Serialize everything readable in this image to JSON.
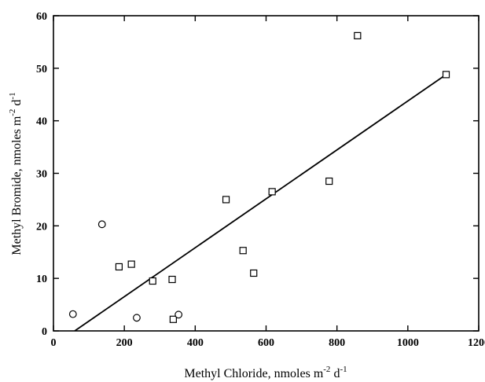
{
  "chart_data": {
    "type": "scatter",
    "xlabel": {
      "text": "Methyl Chloride, nmoles m",
      "exp1": "-2",
      "mid": " d",
      "exp2": "-1"
    },
    "ylabel": {
      "text": "Methyl Bromide, nmoles m",
      "exp1": "-2",
      "mid": " d",
      "exp2": "-1"
    },
    "xlim": [
      0,
      1200
    ],
    "ylim": [
      0,
      60
    ],
    "xticks": [
      0,
      200,
      400,
      600,
      800,
      1000,
      1200
    ],
    "yticks": [
      0,
      10,
      20,
      30,
      40,
      50,
      60
    ],
    "grid": false,
    "series": [
      {
        "marker": "square",
        "points": [
          {
            "x": 185,
            "y": 12.2
          },
          {
            "x": 220,
            "y": 12.7
          },
          {
            "x": 280,
            "y": 9.5
          },
          {
            "x": 335,
            "y": 9.8
          },
          {
            "x": 338,
            "y": 2.2
          },
          {
            "x": 487,
            "y": 25.0
          },
          {
            "x": 535,
            "y": 15.3
          },
          {
            "x": 565,
            "y": 11.0
          },
          {
            "x": 617,
            "y": 26.5
          },
          {
            "x": 778,
            "y": 28.5
          },
          {
            "x": 858,
            "y": 56.2
          },
          {
            "x": 1108,
            "y": 48.8
          }
        ]
      },
      {
        "marker": "circle",
        "points": [
          {
            "x": 55,
            "y": 3.2
          },
          {
            "x": 137,
            "y": 20.3
          },
          {
            "x": 235,
            "y": 2.5
          },
          {
            "x": 353,
            "y": 3.1
          }
        ]
      }
    ],
    "fit_line": {
      "x1": 60,
      "y1": 0,
      "x2": 1108,
      "y2": 48.8
    }
  }
}
